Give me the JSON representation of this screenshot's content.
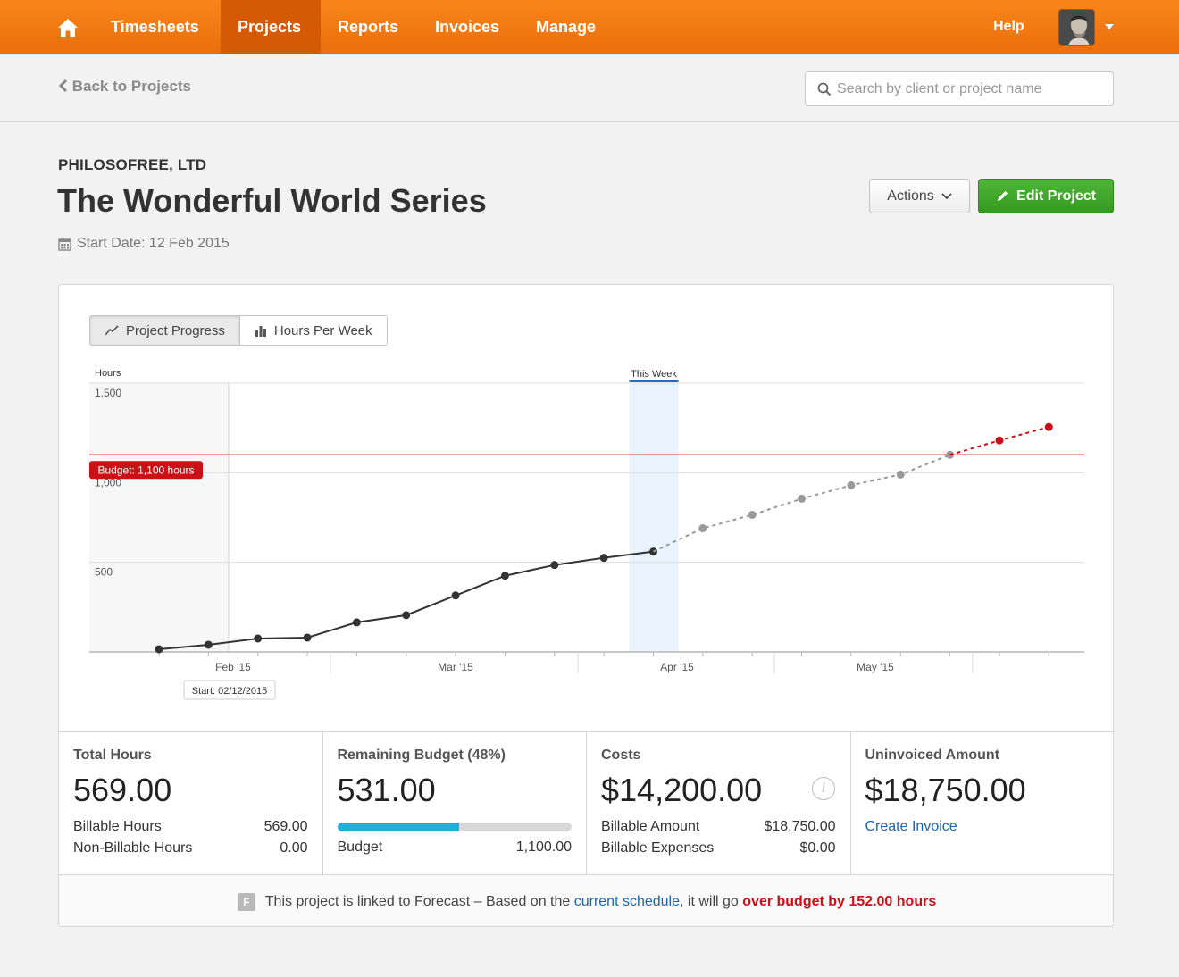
{
  "nav": {
    "items": [
      {
        "label": "Timesheets",
        "active": false
      },
      {
        "label": "Projects",
        "active": true
      },
      {
        "label": "Reports",
        "active": false
      },
      {
        "label": "Invoices",
        "active": false
      },
      {
        "label": "Manage",
        "active": false
      }
    ],
    "help": "Help"
  },
  "subheader": {
    "back_label": "Back to Projects",
    "search_placeholder": "Search by client or project name"
  },
  "project": {
    "client": "PHILOSOFREE, LTD",
    "title": "The Wonderful World Series",
    "start_date": "Start Date: 12 Feb 2015",
    "actions_label": "Actions",
    "edit_label": "Edit Project"
  },
  "chart_toggle": {
    "progress_label": "Project Progress",
    "hours_label": "Hours Per Week",
    "active": "progress"
  },
  "chart_data": {
    "type": "line",
    "ylabel": "Hours",
    "ylim": [
      0,
      1500
    ],
    "yticks": [
      500,
      1000,
      1500
    ],
    "ytick_labels": [
      "500",
      "1,000",
      "1,500"
    ],
    "x_labels": [
      "Feb '15",
      "Mar '15",
      "Apr '15",
      "May '15"
    ],
    "budget": 1100,
    "budget_label": "Budget: 1,100 hours",
    "this_week_label": "This Week",
    "start_label": "Start: 02/12/2015",
    "series": [
      {
        "kind": "actual",
        "color": "#333333",
        "values": [
          15,
          40,
          75,
          80,
          165,
          205,
          315,
          425,
          485,
          525,
          560
        ]
      },
      {
        "kind": "forecast",
        "color": "#999999",
        "values": [
          560,
          690,
          765,
          855,
          930,
          990,
          1100
        ]
      },
      {
        "kind": "over-budget",
        "color": "#cc1018",
        "values": [
          1100,
          1180,
          1255
        ]
      }
    ]
  },
  "stats": {
    "total_hours": {
      "label": "Total Hours",
      "value": "569.00",
      "billable_label": "Billable Hours",
      "billable_value": "569.00",
      "nonbillable_label": "Non-Billable Hours",
      "nonbillable_value": "0.00"
    },
    "remaining": {
      "label": "Remaining Budget (48%)",
      "value": "531.00",
      "progress_percent": 52,
      "budget_label": "Budget",
      "budget_value": "1,100.00"
    },
    "costs": {
      "label": "Costs",
      "value": "$14,200.00",
      "billable_amount_label": "Billable Amount",
      "billable_amount_value": "$18,750.00",
      "billable_expenses_label": "Billable Expenses",
      "billable_expenses_value": "$0.00"
    },
    "uninvoiced": {
      "label": "Uninvoiced Amount",
      "value": "$18,750.00",
      "create_invoice": "Create Invoice"
    }
  },
  "forecast_note": {
    "badge": "F",
    "text_before": "This project is linked to Forecast – Based on the ",
    "link": "current schedule",
    "text_middle": ", it will go ",
    "over": "over budget by 152.00 hours"
  }
}
